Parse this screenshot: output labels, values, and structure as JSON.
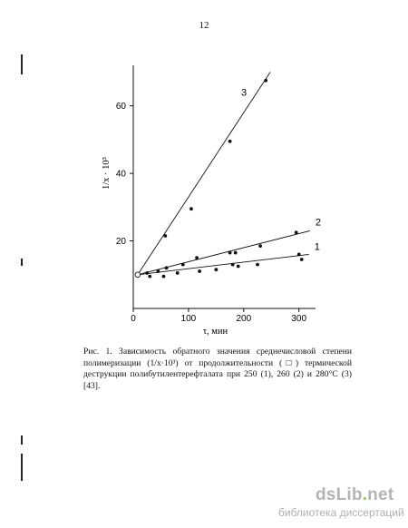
{
  "page": {
    "number": "12"
  },
  "chart_data": {
    "type": "scatter",
    "xlabel": "τ, мин",
    "ylabel": "1/x · 10³",
    "xlim": [
      0,
      330
    ],
    "ylim": [
      0,
      72
    ],
    "x_ticks": [
      0,
      100,
      200,
      300
    ],
    "y_ticks": [
      20,
      40,
      60
    ],
    "grid": false,
    "series": [
      {
        "name": "1",
        "points": [
          [
            10,
            10
          ],
          [
            30,
            9.5
          ],
          [
            55,
            9.5
          ],
          [
            80,
            10.5
          ],
          [
            120,
            11
          ],
          [
            150,
            11.5
          ],
          [
            180,
            13
          ],
          [
            190,
            12.5
          ],
          [
            225,
            13
          ],
          [
            300,
            16
          ],
          [
            305,
            14.5
          ]
        ],
        "fit": [
          [
            8,
            10
          ],
          [
            318,
            16
          ]
        ]
      },
      {
        "name": "2",
        "points": [
          [
            25,
            10.5
          ],
          [
            45,
            11
          ],
          [
            60,
            12
          ],
          [
            90,
            13
          ],
          [
            115,
            15
          ],
          [
            175,
            16.5
          ],
          [
            185,
            16.5
          ],
          [
            230,
            18.5
          ],
          [
            295,
            22.5
          ]
        ],
        "fit": [
          [
            8,
            10
          ],
          [
            320,
            23
          ]
        ]
      },
      {
        "name": "3",
        "points": [
          [
            58,
            21.5
          ],
          [
            105,
            29.5
          ],
          [
            175,
            49.5
          ],
          [
            240,
            67.5
          ]
        ],
        "fit": [
          [
            8,
            10
          ],
          [
            248,
            70
          ]
        ]
      }
    ],
    "origin_marker": [
      8,
      10
    ]
  },
  "caption": {
    "text": "Рис. 1. Зависимость обратного значения среднечисловой степени полимеризации (1/x·10³) от продолжительности (□) термической деструкции полибутилентерефталата при 250 (1), 260 (2) и 280°С (3) [43]."
  },
  "watermark": {
    "logo_main": "dsLib",
    "logo_dot": ".",
    "logo_tld": "net",
    "subtitle": "библиотека диссертаций"
  }
}
